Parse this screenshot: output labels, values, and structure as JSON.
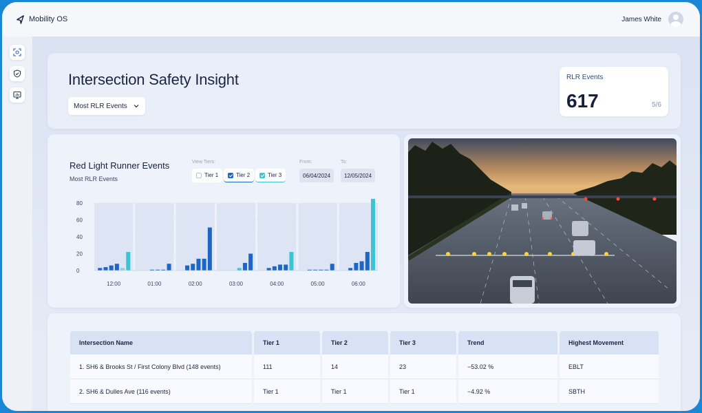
{
  "app": {
    "name": "Mobility OS",
    "user_name": "James White"
  },
  "sidebar": {
    "items": [
      {
        "icon": "scan-icon",
        "active": true
      },
      {
        "icon": "shield-check-icon",
        "active": false
      },
      {
        "icon": "chart-report-icon",
        "active": false
      }
    ]
  },
  "header": {
    "title": "Intersection Safety Insight",
    "dropdown_value": "Most RLR Events"
  },
  "kpi": {
    "label": "RLR Events",
    "value": "617",
    "page": "5/6"
  },
  "chart_panel": {
    "title": "Red Light Runner Events",
    "subtitle": "Most RLR Events",
    "view_tiers_label": "View Tiers:",
    "tiers": [
      {
        "label": "Tier 1",
        "checked": false
      },
      {
        "label": "Tier 2",
        "checked": true
      },
      {
        "label": "Tier 3",
        "checked": true
      }
    ],
    "from_label": "From:",
    "from_value": "06/04/2024",
    "to_label": "To:",
    "to_value": "12/05/2024"
  },
  "chart_data": {
    "type": "bar",
    "title": "Red Light Runner Events",
    "subtitle": "Most RLR Events",
    "xlabel": "",
    "ylabel": "",
    "ylim": [
      0,
      80
    ],
    "yticks": [
      0,
      20,
      40,
      60,
      80
    ],
    "categories": [
      "12:00",
      "01:00",
      "02:00",
      "03:00",
      "04:00",
      "05:00",
      "06:00"
    ],
    "series_colors": [
      "#7fa6df",
      "#1e66c4",
      "#3ec3d3"
    ],
    "groups": [
      [
        3,
        4,
        6,
        8,
        3,
        22
      ],
      [
        1,
        1,
        1,
        8
      ],
      [
        6,
        8,
        14,
        14,
        51
      ],
      [
        3,
        9,
        20
      ],
      [
        3,
        5,
        7,
        7,
        22
      ],
      [
        1,
        1,
        1,
        1,
        8
      ],
      [
        3,
        9,
        11,
        22,
        85
      ]
    ],
    "group_colors": [
      [
        "#1e66c4",
        "#1e66c4",
        "#1e66c4",
        "#1e66c4",
        "#7fd3e0",
        "#3ec3d3"
      ],
      [
        "#1e66c4",
        "#1e66c4",
        "#1e66c4",
        "#1e66c4"
      ],
      [
        "#1e66c4",
        "#1e66c4",
        "#1e66c4",
        "#1e66c4",
        "#1e66c4"
      ],
      [
        "#3ec3d3",
        "#1e66c4",
        "#1e66c4"
      ],
      [
        "#1e66c4",
        "#1e66c4",
        "#1e66c4",
        "#1e66c4",
        "#3ec3d3"
      ],
      [
        "#1e66c4",
        "#1e66c4",
        "#1e66c4",
        "#1e66c4",
        "#1e66c4"
      ],
      [
        "#1e66c4",
        "#1e66c4",
        "#1e66c4",
        "#1e66c4",
        "#3ec3d3"
      ]
    ],
    "grid": true
  },
  "table": {
    "headers": [
      "Intersection Name",
      "Tier 1",
      "Tier 2",
      "Tier 3",
      "Trend",
      "Highest Movement"
    ],
    "rows": [
      [
        "1. SH6 & Brooks St / First Colony Blvd (148 events)",
        "111",
        "14",
        "23",
        "−53.02 %",
        "EBLT"
      ],
      [
        "2. SH6 & Dulles Ave (116 events)",
        "Tier 1",
        "Tier 1",
        "Tier 1",
        "−4.92 %",
        "SBTH"
      ]
    ]
  }
}
